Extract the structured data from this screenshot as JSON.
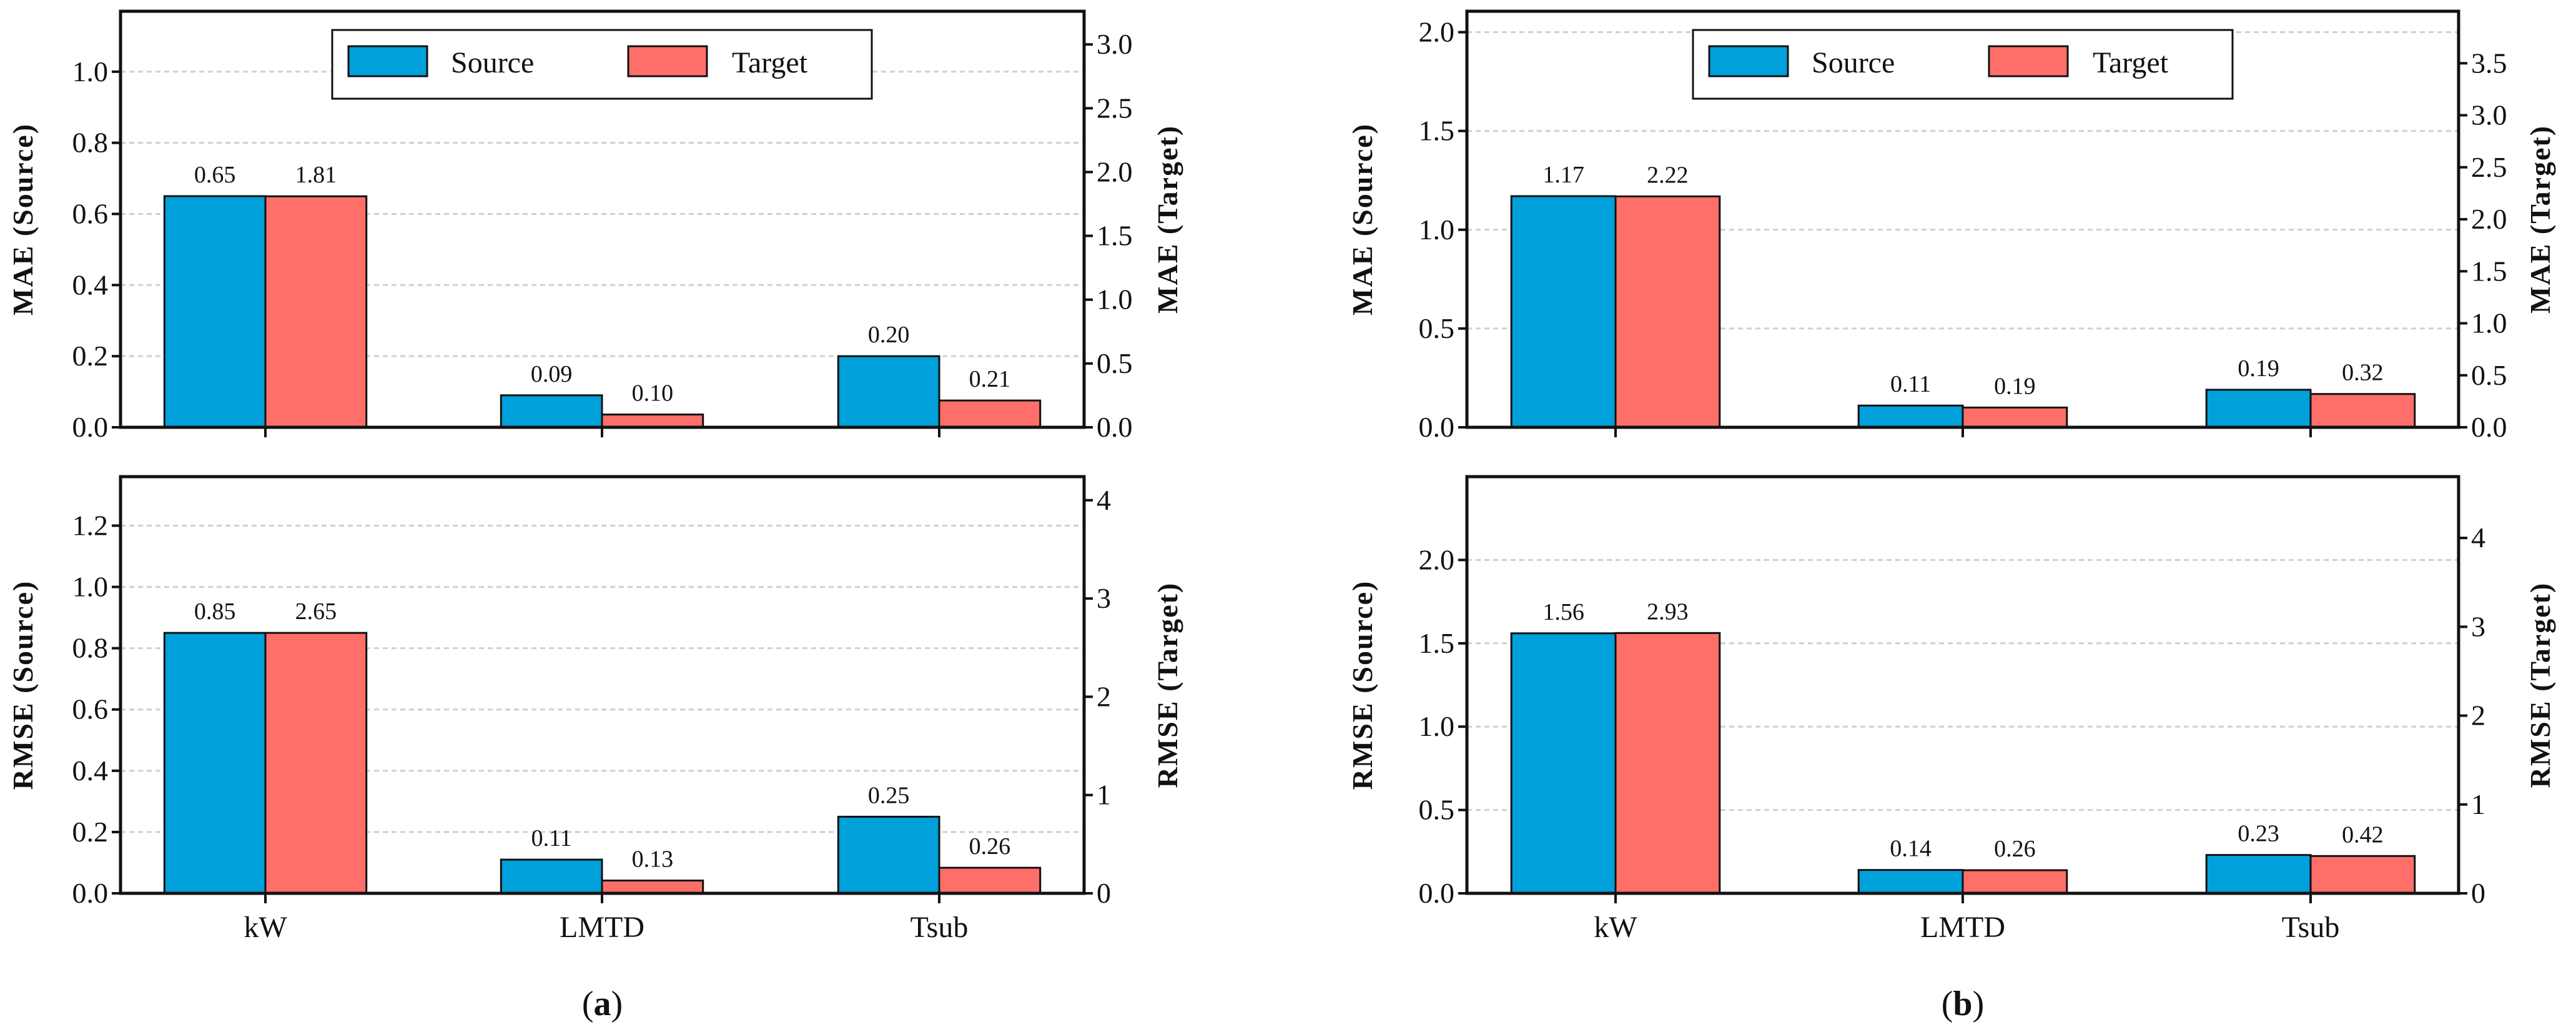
{
  "chart_data": [
    {
      "type": "bar",
      "panel": "a",
      "categories": [
        "kW",
        "LMTD",
        "Tsub"
      ],
      "ylabel": "MAE (Source)",
      "y2label": "MAE (Target)",
      "series": [
        {
          "name": "Source",
          "axis": "left",
          "values": [
            0.65,
            0.09,
            0.2
          ],
          "labels": [
            "0.65",
            "0.09",
            "0.20"
          ]
        },
        {
          "name": "Target",
          "axis": "right",
          "values": [
            1.81,
            0.1,
            0.21
          ],
          "labels": [
            "1.81",
            "0.10",
            "0.21"
          ]
        }
      ],
      "ylim": [
        0,
        1.17
      ],
      "y2lim": [
        0,
        3.26
      ],
      "yticks": [
        "0.0",
        "0.2",
        "0.4",
        "0.6",
        "0.8",
        "1.0"
      ],
      "y2ticks": [
        "0.0",
        "0.5",
        "1.0",
        "1.5",
        "2.0",
        "2.5",
        "3.0"
      ],
      "legend": "top-center",
      "grid": true
    },
    {
      "type": "bar",
      "panel": "a",
      "categories": [
        "kW",
        "LMTD",
        "Tsub"
      ],
      "ylabel": "RMSE (Source)",
      "y2label": "RMSE (Target)",
      "series": [
        {
          "name": "Source",
          "axis": "left",
          "values": [
            0.85,
            0.11,
            0.25
          ],
          "labels": [
            "0.85",
            "0.11",
            "0.25"
          ]
        },
        {
          "name": "Target",
          "axis": "right",
          "values": [
            2.65,
            0.13,
            0.26
          ],
          "labels": [
            "2.65",
            "0.13",
            "0.26"
          ]
        }
      ],
      "ylim": [
        0,
        1.36
      ],
      "y2lim": [
        0,
        4.24
      ],
      "yticks": [
        "0.0",
        "0.2",
        "0.4",
        "0.6",
        "0.8",
        "1.0",
        "1.2"
      ],
      "y2ticks": [
        "0",
        "1",
        "2",
        "3",
        "4"
      ],
      "grid": true
    },
    {
      "type": "bar",
      "panel": "b",
      "categories": [
        "kW",
        "LMTD",
        "Tsub"
      ],
      "ylabel": "MAE (Source)",
      "y2label": "MAE (Target)",
      "series": [
        {
          "name": "Source",
          "axis": "left",
          "values": [
            1.17,
            0.11,
            0.19
          ],
          "labels": [
            "1.17",
            "0.11",
            "0.19"
          ]
        },
        {
          "name": "Target",
          "axis": "right",
          "values": [
            2.22,
            0.19,
            0.32
          ],
          "labels": [
            "2.22",
            "0.19",
            "0.32"
          ]
        }
      ],
      "ylim": [
        0,
        2.106
      ],
      "y2lim": [
        0,
        4.0
      ],
      "yticks": [
        "0.0",
        "0.5",
        "1.0",
        "1.5",
        "2.0"
      ],
      "y2ticks": [
        "0.0",
        "0.5",
        "1.0",
        "1.5",
        "2.0",
        "2.5",
        "3.0",
        "3.5"
      ],
      "legend": "top-center",
      "grid": true
    },
    {
      "type": "bar",
      "panel": "b",
      "categories": [
        "kW",
        "LMTD",
        "Tsub"
      ],
      "ylabel": "RMSE (Source)",
      "y2label": "RMSE (Target)",
      "series": [
        {
          "name": "Source",
          "axis": "left",
          "values": [
            1.56,
            0.14,
            0.23
          ],
          "labels": [
            "1.56",
            "0.14",
            "0.23"
          ]
        },
        {
          "name": "Target",
          "axis": "right",
          "values": [
            2.93,
            0.26,
            0.42
          ],
          "labels": [
            "2.93",
            "0.26",
            "0.42"
          ]
        }
      ],
      "ylim": [
        0,
        2.5
      ],
      "y2lim": [
        0,
        4.69
      ],
      "yticks": [
        "0.0",
        "0.5",
        "1.0",
        "1.5",
        "2.0"
      ],
      "y2ticks": [
        "0",
        "1",
        "2",
        "3",
        "4"
      ],
      "grid": true
    }
  ],
  "legend": {
    "source": "Source",
    "target": "Target"
  },
  "panel_labels": {
    "a": "a",
    "b": "b"
  },
  "colors": {
    "source": "#00A0DA",
    "target": "#FF6F69",
    "grid": "#d0d0d0"
  }
}
